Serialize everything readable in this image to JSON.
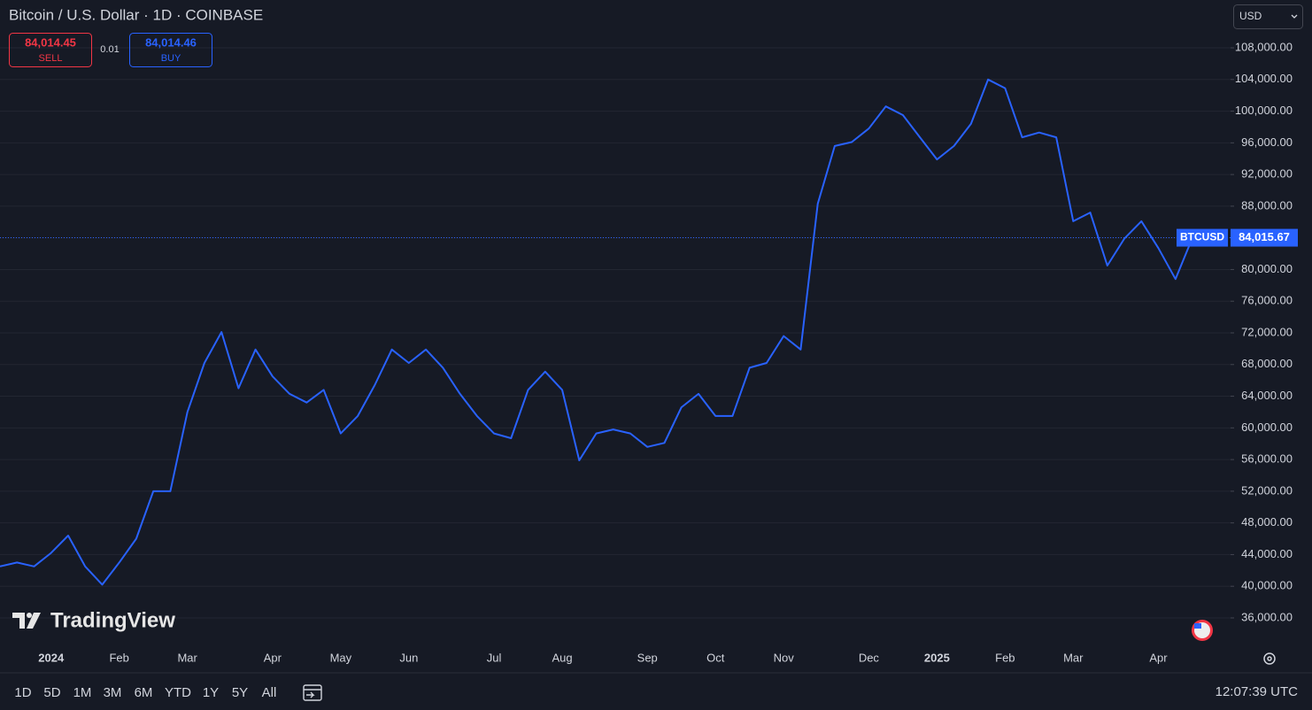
{
  "chart_data": {
    "type": "line",
    "title": "Bitcoin / U.S. Dollar · 1D · COINBASE",
    "symbol": "BTCUSD",
    "color": "#2962ff",
    "categories": [
      null,
      null,
      null,
      "2024",
      null,
      null,
      null,
      "Feb",
      null,
      null,
      null,
      "Mar",
      null,
      null,
      null,
      null,
      "Apr",
      null,
      null,
      null,
      "May",
      null,
      null,
      null,
      "Jun",
      null,
      null,
      null,
      null,
      "Jul",
      null,
      null,
      null,
      "Aug",
      null,
      null,
      null,
      null,
      "Sep",
      null,
      null,
      null,
      "Oct",
      null,
      null,
      null,
      "Nov",
      null,
      null,
      null,
      null,
      "Dec",
      null,
      null,
      null,
      "2025",
      null,
      null,
      null,
      "Feb",
      null,
      null,
      null,
      "Mar",
      null,
      null,
      null,
      null,
      "Apr",
      null,
      null
    ],
    "values": [
      42500,
      43000,
      42500,
      44200,
      46400,
      42500,
      40200,
      43000,
      46000,
      52000,
      52000,
      62000,
      68200,
      72100,
      65000,
      69900,
      66500,
      64300,
      63200,
      64800,
      59300,
      61500,
      65400,
      69900,
      68200,
      69900,
      67600,
      64300,
      61500,
      59300,
      58700,
      64800,
      67100,
      64800,
      55900,
      59300,
      59800,
      59300,
      57600,
      58100,
      62600,
      64300,
      61500,
      61500,
      67600,
      68200,
      71600,
      69900,
      88300,
      95600,
      96100,
      97800,
      100600,
      99500,
      96700,
      93900,
      95600,
      98400,
      104000,
      102900,
      96700,
      97300,
      96700,
      86100,
      87200,
      80500,
      83900,
      86100,
      82700,
      78800,
      84015.67
    ],
    "last_price": {
      "value": 84015.67,
      "label": "84,015.67"
    },
    "ylim": [
      32420,
      114040
    ],
    "yticks": [
      {
        "value": 36000,
        "label": "36,000.00"
      },
      {
        "value": 40000,
        "label": "40,000.00"
      },
      {
        "value": 44000,
        "label": "44,000.00"
      },
      {
        "value": 48000,
        "label": "48,000.00"
      },
      {
        "value": 52000,
        "label": "52,000.00"
      },
      {
        "value": 56000,
        "label": "56,000.00"
      },
      {
        "value": 60000,
        "label": "60,000.00"
      },
      {
        "value": 64000,
        "label": "64,000.00"
      },
      {
        "value": 68000,
        "label": "68,000.00"
      },
      {
        "value": 72000,
        "label": "72,000.00"
      },
      {
        "value": 76000,
        "label": "76,000.00"
      },
      {
        "value": 80000,
        "label": "80,000.00"
      },
      {
        "value": 84000,
        "label": "84,000.00"
      },
      {
        "value": 88000,
        "label": "88,000.00"
      },
      {
        "value": 92000,
        "label": "92,000.00"
      },
      {
        "value": 96000,
        "label": "96,000.00"
      },
      {
        "value": 100000,
        "label": "100,000.00"
      },
      {
        "value": 104000,
        "label": "104,000.00"
      },
      {
        "value": 108000,
        "label": "108,000.00"
      }
    ],
    "grid": true
  },
  "quote": {
    "sell_price": "84,014.45",
    "sell": "SELL",
    "spread": "0.01",
    "buy_price": "84,014.46",
    "buy": "BUY",
    "currency": "USD"
  },
  "watermark": "TradingView",
  "toolbar": {
    "ranges": [
      "1D",
      "5D",
      "1M",
      "3M",
      "6M",
      "YTD",
      "1Y",
      "5Y",
      "All"
    ],
    "clock": "12:07:39 UTC"
  }
}
